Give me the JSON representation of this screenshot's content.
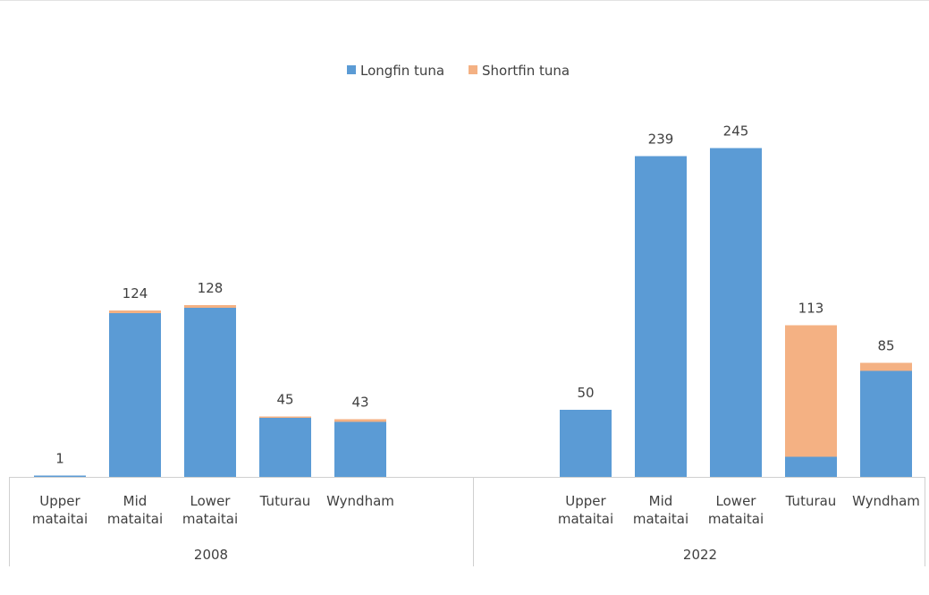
{
  "chart_data": {
    "type": "bar",
    "stacked": true,
    "title": "",
    "xlabel": "",
    "ylabel": "",
    "ylim": [
      0,
      260
    ],
    "grid": false,
    "legend_position": "top",
    "groups": [
      "2008",
      "2022"
    ],
    "categories": [
      "Upper\nmataitai",
      "Mid\nmataitai",
      "Lower\nmataitai",
      "Tuturau",
      "Wyndham"
    ],
    "series": [
      {
        "name": "Longfin tuna",
        "color": "#5b9bd5",
        "values": [
          [
            1,
            122,
            126,
            44,
            41
          ],
          [
            50,
            239,
            245,
            15,
            79
          ]
        ]
      },
      {
        "name": "Shortfin tuna",
        "color": "#f4b183",
        "values": [
          [
            0,
            2,
            2,
            1,
            2
          ],
          [
            0,
            0,
            0,
            98,
            6
          ]
        ]
      }
    ],
    "totals": [
      [
        1,
        124,
        128,
        45,
        43
      ],
      [
        50,
        239,
        245,
        113,
        85
      ]
    ]
  }
}
